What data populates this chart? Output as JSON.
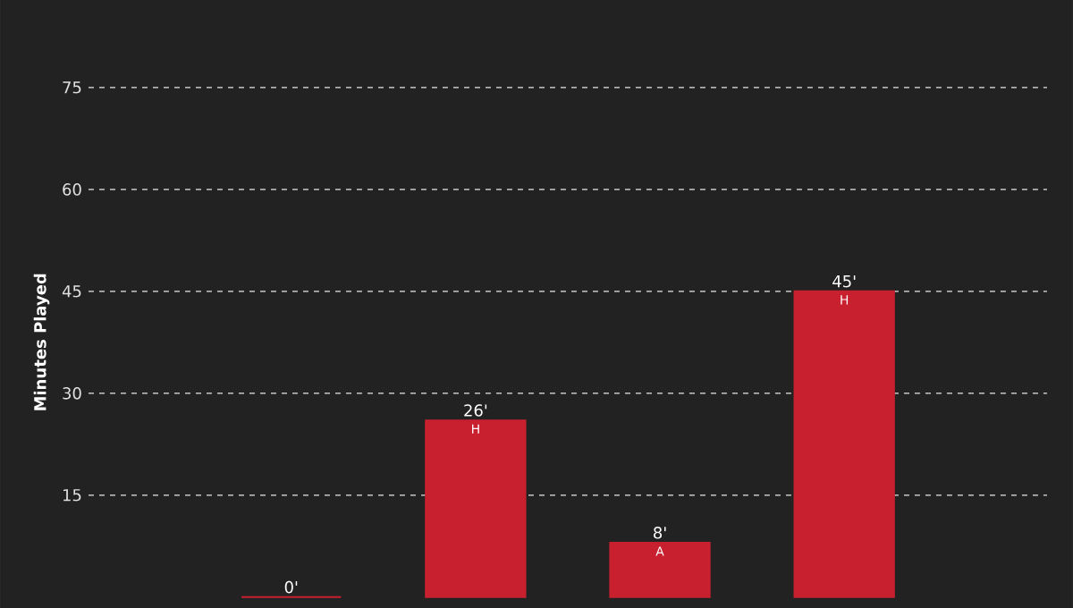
{
  "chart_data": {
    "type": "bar",
    "ylabel": "Minutes Played",
    "categories": [
      null,
      null,
      null,
      null
    ],
    "values": [
      0,
      26,
      8,
      45
    ],
    "color": "#c8202e",
    "value_labels": [
      "0'",
      "26'",
      "8'",
      "45'"
    ],
    "annotations": [
      {
        "text": "H",
        "y": 26
      },
      {
        "text": "A",
        "y": 8
      },
      {
        "text": "H",
        "y": 45
      }
    ],
    "ylim": [
      0,
      75
    ],
    "yticks": [
      15,
      30,
      45,
      60,
      75
    ],
    "grid": "y"
  }
}
